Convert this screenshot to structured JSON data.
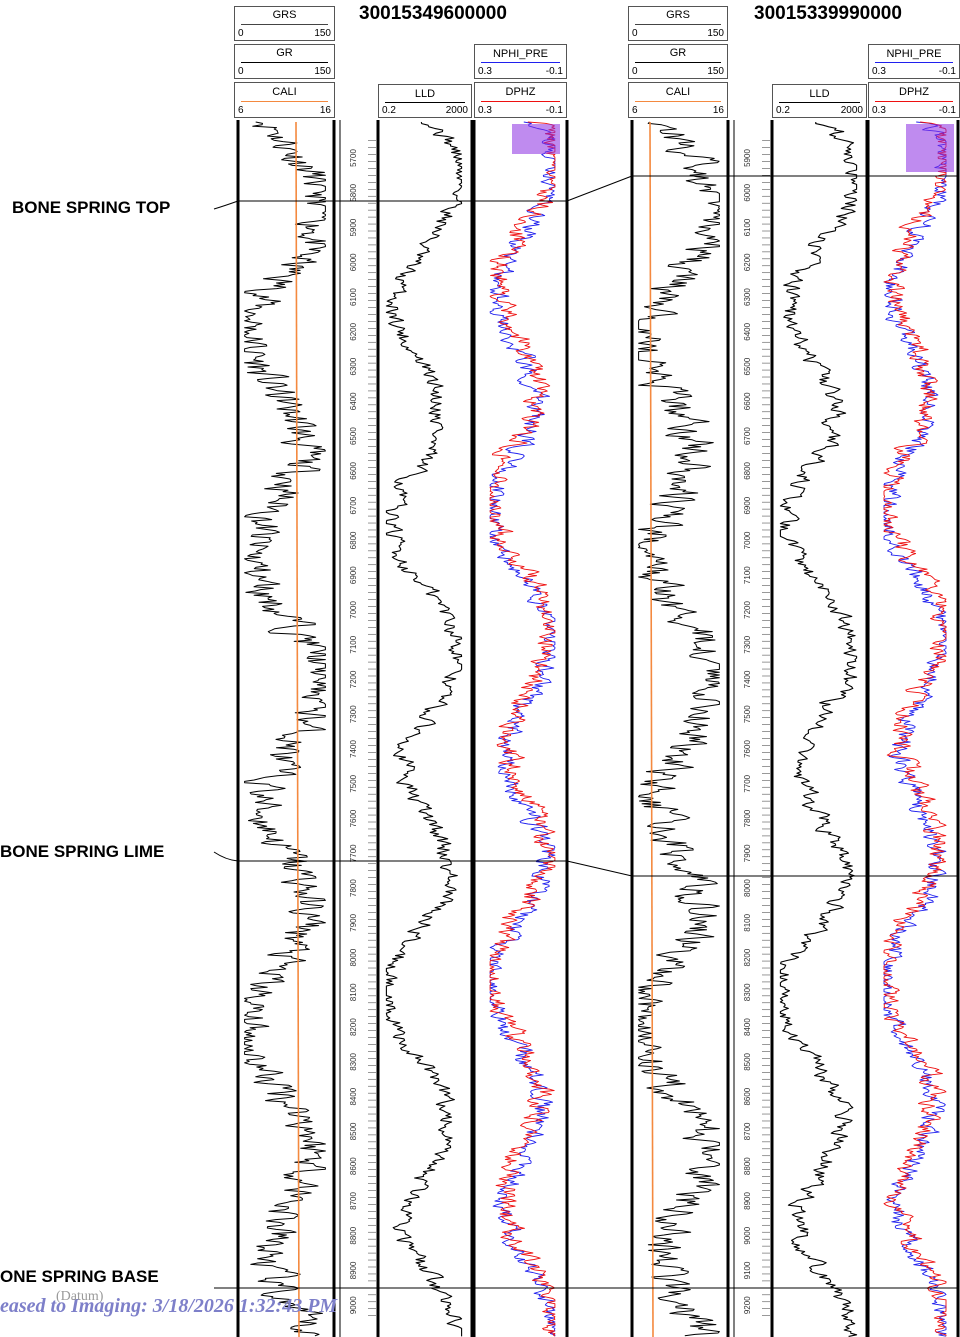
{
  "wells": [
    {
      "id": "30015349600000",
      "headers": {
        "grs": {
          "name": "GRS",
          "min": "0",
          "max": "150"
        },
        "gr": {
          "name": "GR",
          "min": "0",
          "max": "150"
        },
        "cali": {
          "name": "CALI",
          "min": "6",
          "max": "16"
        },
        "lld": {
          "name": "LLD",
          "min": "0.2",
          "max": "2000"
        },
        "nphi": {
          "name": "NPHI_PRE",
          "min": "0.3",
          "max": "-0.1"
        },
        "dphz": {
          "name": "DPHZ",
          "min": "0.3",
          "max": "-0.1"
        }
      },
      "depth_labels": [
        "5700",
        "5800",
        "5900",
        "6000",
        "6100",
        "6200",
        "6300",
        "6400",
        "6500",
        "6600",
        "6700",
        "6800",
        "6900",
        "7000",
        "7100",
        "7200",
        "7300",
        "7400",
        "7500",
        "7600",
        "7700",
        "7800",
        "7900",
        "8000",
        "8100",
        "8200",
        "8300",
        "8400",
        "8500",
        "8600",
        "8700",
        "8800",
        "8900",
        "9000"
      ]
    },
    {
      "id": "30015339990000",
      "headers": {
        "grs": {
          "name": "GRS",
          "min": "0",
          "max": "150"
        },
        "gr": {
          "name": "GR",
          "min": "0",
          "max": "150"
        },
        "cali": {
          "name": "CALI",
          "min": "6",
          "max": "16"
        },
        "lld": {
          "name": "LLD",
          "min": "0.2",
          "max": "2000"
        },
        "nphi": {
          "name": "NPHI_PRE",
          "min": "0.3",
          "max": "-0.1"
        },
        "dphz": {
          "name": "DPHZ",
          "min": "0.3",
          "max": "-0.1"
        }
      },
      "depth_labels": [
        "5900",
        "6000",
        "6100",
        "6200",
        "6300",
        "6400",
        "6500",
        "6600",
        "6700",
        "6800",
        "6900",
        "7000",
        "7100",
        "7200",
        "7300",
        "7400",
        "7500",
        "7600",
        "7700",
        "7800",
        "7900",
        "8000",
        "8100",
        "8200",
        "8300",
        "8400",
        "8500",
        "8600",
        "8700",
        "8800",
        "8900",
        "9000",
        "9100",
        "9200"
      ]
    }
  ],
  "tops": [
    {
      "name": "BONE SPRING TOP"
    },
    {
      "name": "BONE SPRING LIME"
    },
    {
      "name": "ONE SPRING BASE"
    }
  ],
  "footer": {
    "text": "eased to Imaging: 3/18/2026 1:32:43 PM",
    "overlay": "(Datum)"
  },
  "colors": {
    "gr": "#000000",
    "cali": "#f4893f",
    "lld": "#000000",
    "nphi": "#2020ee",
    "dphz": "#ee1010",
    "overlap": "#8a2be2",
    "wellid": "#000000",
    "footer": "#7d7fc9"
  }
}
